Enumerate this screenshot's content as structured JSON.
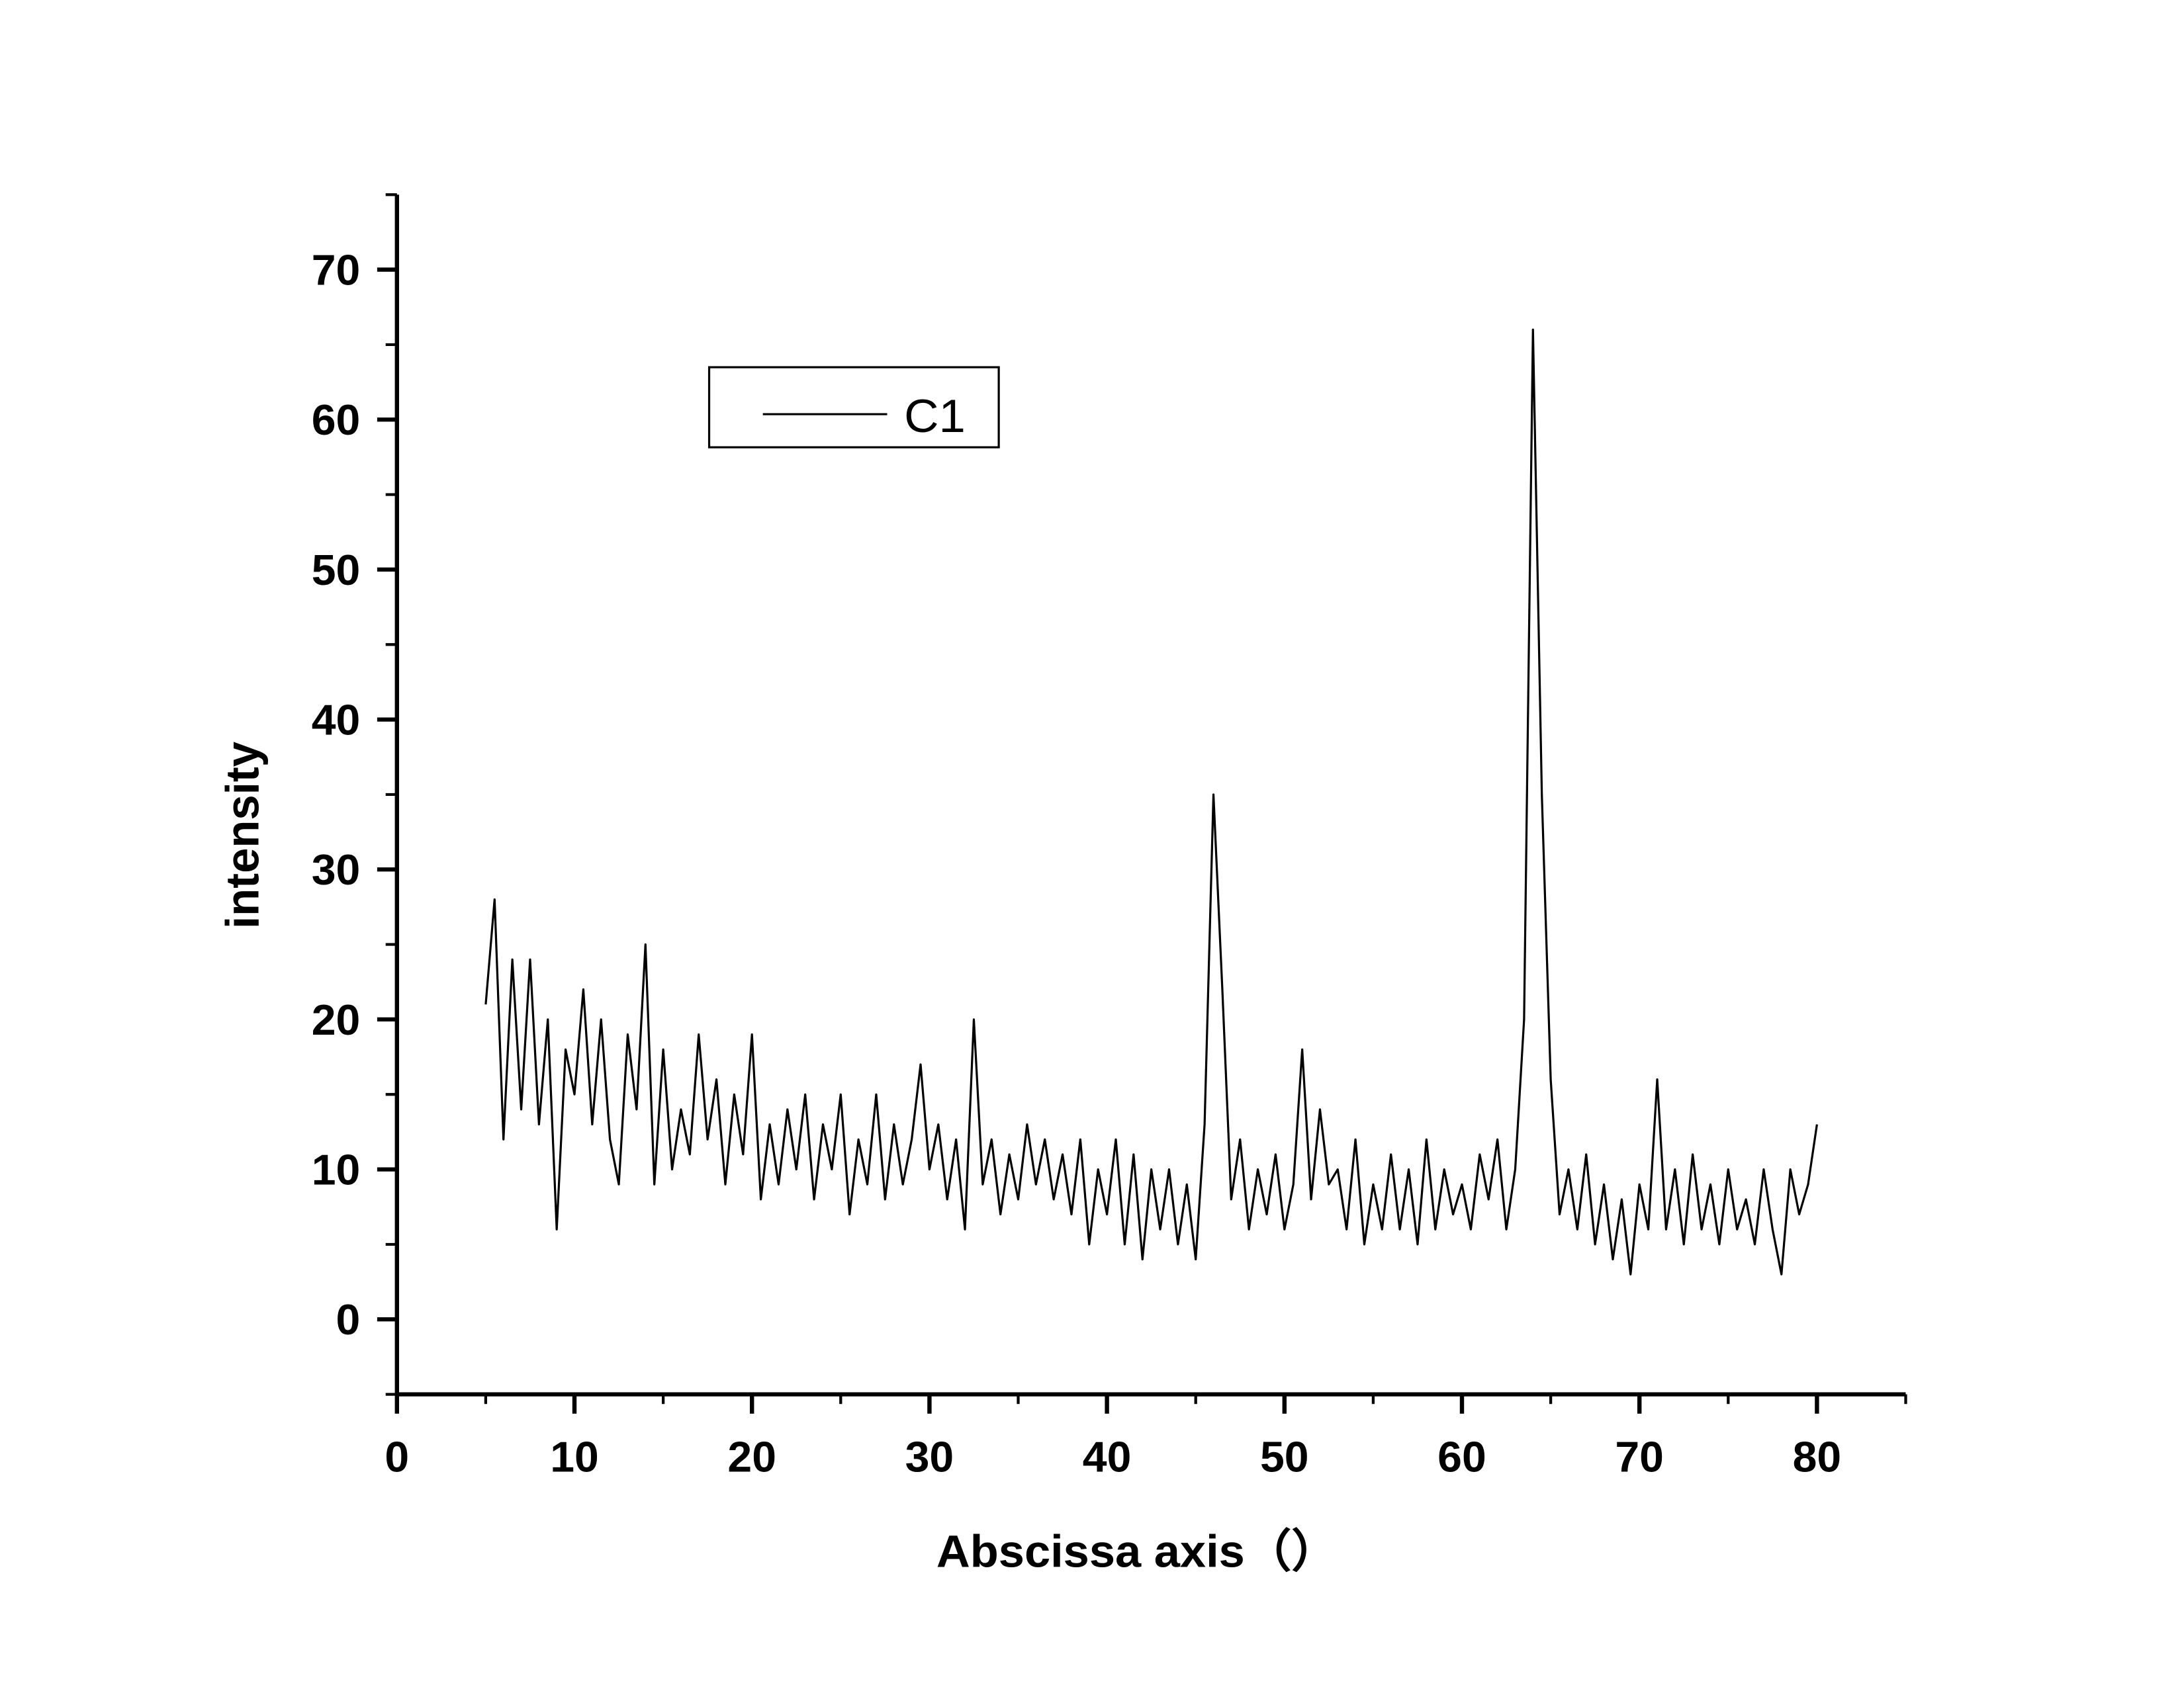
{
  "chart_data": {
    "type": "line",
    "xlabel": "Abscissa axis（）",
    "ylabel": "intensity",
    "xlim": [
      0,
      85
    ],
    "xticks": [
      0,
      10,
      20,
      30,
      40,
      50,
      60,
      70,
      80
    ],
    "ylim": [
      -5,
      75
    ],
    "yticks": [
      0,
      10,
      20,
      30,
      40,
      50,
      60,
      70
    ],
    "legend_position": "upper left",
    "x": [
      5,
      5.5,
      6,
      6.5,
      7,
      7.5,
      8,
      8.5,
      9,
      9.5,
      10,
      10.5,
      11,
      11.5,
      12,
      12.5,
      13,
      13.5,
      14,
      14.5,
      15,
      15.5,
      16,
      16.5,
      17,
      17.5,
      18,
      18.5,
      19,
      19.5,
      20,
      20.5,
      21,
      21.5,
      22,
      22.5,
      23,
      23.5,
      24,
      24.5,
      25,
      25.5,
      26,
      26.5,
      27,
      27.5,
      28,
      28.5,
      29,
      29.5,
      30,
      30.5,
      31,
      31.5,
      32,
      32.5,
      33,
      33.5,
      34,
      34.5,
      35,
      35.5,
      36,
      36.5,
      37,
      37.5,
      38,
      38.5,
      39,
      39.5,
      40,
      40.5,
      41,
      41.5,
      42,
      42.5,
      43,
      43.5,
      44,
      44.5,
      45,
      45.5,
      46,
      46.5,
      47,
      47.5,
      48,
      48.5,
      49,
      49.5,
      50,
      50.5,
      51,
      51.5,
      52,
      52.5,
      53,
      53.5,
      54,
      54.5,
      55,
      55.5,
      56,
      56.5,
      57,
      57.5,
      58,
      58.5,
      59,
      59.5,
      60,
      60.5,
      61,
      61.5,
      62,
      62.5,
      63,
      63.5,
      64,
      64.5,
      65,
      65.5,
      66,
      66.5,
      67,
      67.5,
      68,
      68.5,
      69,
      69.5,
      70,
      70.5,
      71,
      71.5,
      72,
      72.5,
      73,
      73.5,
      74,
      74.5,
      75,
      75.5,
      76,
      76.5,
      77,
      77.5,
      78,
      78.5,
      79,
      79.5,
      80
    ],
    "series": [
      {
        "name": "C1",
        "color": "#000000",
        "values": [
          21,
          28,
          12,
          24,
          14,
          24,
          13,
          20,
          6,
          18,
          15,
          22,
          13,
          20,
          12,
          9,
          19,
          14,
          25,
          9,
          18,
          10,
          14,
          11,
          19,
          12,
          16,
          9,
          15,
          11,
          19,
          8,
          13,
          9,
          14,
          10,
          15,
          8,
          13,
          10,
          15,
          7,
          12,
          9,
          15,
          8,
          13,
          9,
          12,
          17,
          10,
          13,
          8,
          12,
          6,
          20,
          9,
          12,
          7,
          11,
          8,
          13,
          9,
          12,
          8,
          11,
          7,
          12,
          5,
          10,
          7,
          12,
          5,
          11,
          4,
          10,
          6,
          10,
          5,
          9,
          4,
          13,
          35,
          22,
          8,
          12,
          6,
          10,
          7,
          11,
          6,
          9,
          18,
          8,
          14,
          9,
          10,
          6,
          12,
          5,
          9,
          6,
          11,
          6,
          10,
          5,
          12,
          6,
          10,
          7,
          9,
          6,
          11,
          8,
          12,
          6,
          10,
          20,
          66,
          35,
          16,
          7,
          10,
          6,
          11,
          5,
          9,
          4,
          8,
          3,
          9,
          6,
          16,
          6,
          10,
          5,
          11,
          6,
          9,
          5,
          10,
          6,
          8,
          5,
          10,
          6,
          3,
          10,
          7,
          9,
          13
        ]
      }
    ]
  }
}
